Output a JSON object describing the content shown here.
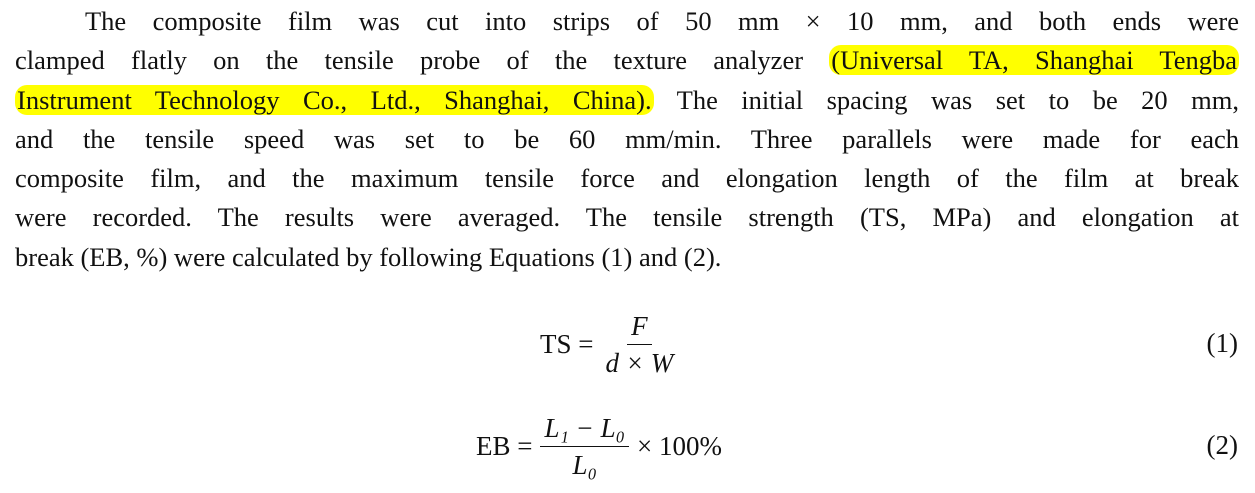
{
  "paragraph": {
    "lines": [
      {
        "pre": "The composite film was cut into strips of 50 mm × 10 mm, and both ends were",
        "hl": "",
        "post": ""
      },
      {
        "pre": "clamped flatly on the tensile probe of the texture analyzer ",
        "hl": "(Universal TA, Shanghai Tengba",
        "post": ""
      },
      {
        "pre": "",
        "hl": "Instrument Technology Co., Ltd., Shanghai, China).",
        "post": " The initial spacing was set to be 20 mm,"
      },
      {
        "pre": "and the tensile speed was set to be 60 mm/min.  Three parallels were made for each",
        "hl": "",
        "post": ""
      },
      {
        "pre": "composite film, and the maximum tensile force and elongation length of the film at break",
        "hl": "",
        "post": ""
      },
      {
        "pre": "were recorded. The results were averaged. The tensile strength (TS, MPa) and elongation at",
        "hl": "",
        "post": ""
      },
      {
        "pre": "break (EB, %) were calculated by following Equations (1) and (2).",
        "hl": "",
        "post": ""
      }
    ],
    "highlight_color": "#ffff00"
  },
  "equations": [
    {
      "lhs": "TS =",
      "num": "F",
      "den": "d × W",
      "tail": "",
      "number": "(1)"
    },
    {
      "lhs": "EB =",
      "num": "L₁ − L₀",
      "den": "L₀",
      "tail": "× 100%",
      "number": "(2)"
    }
  ]
}
